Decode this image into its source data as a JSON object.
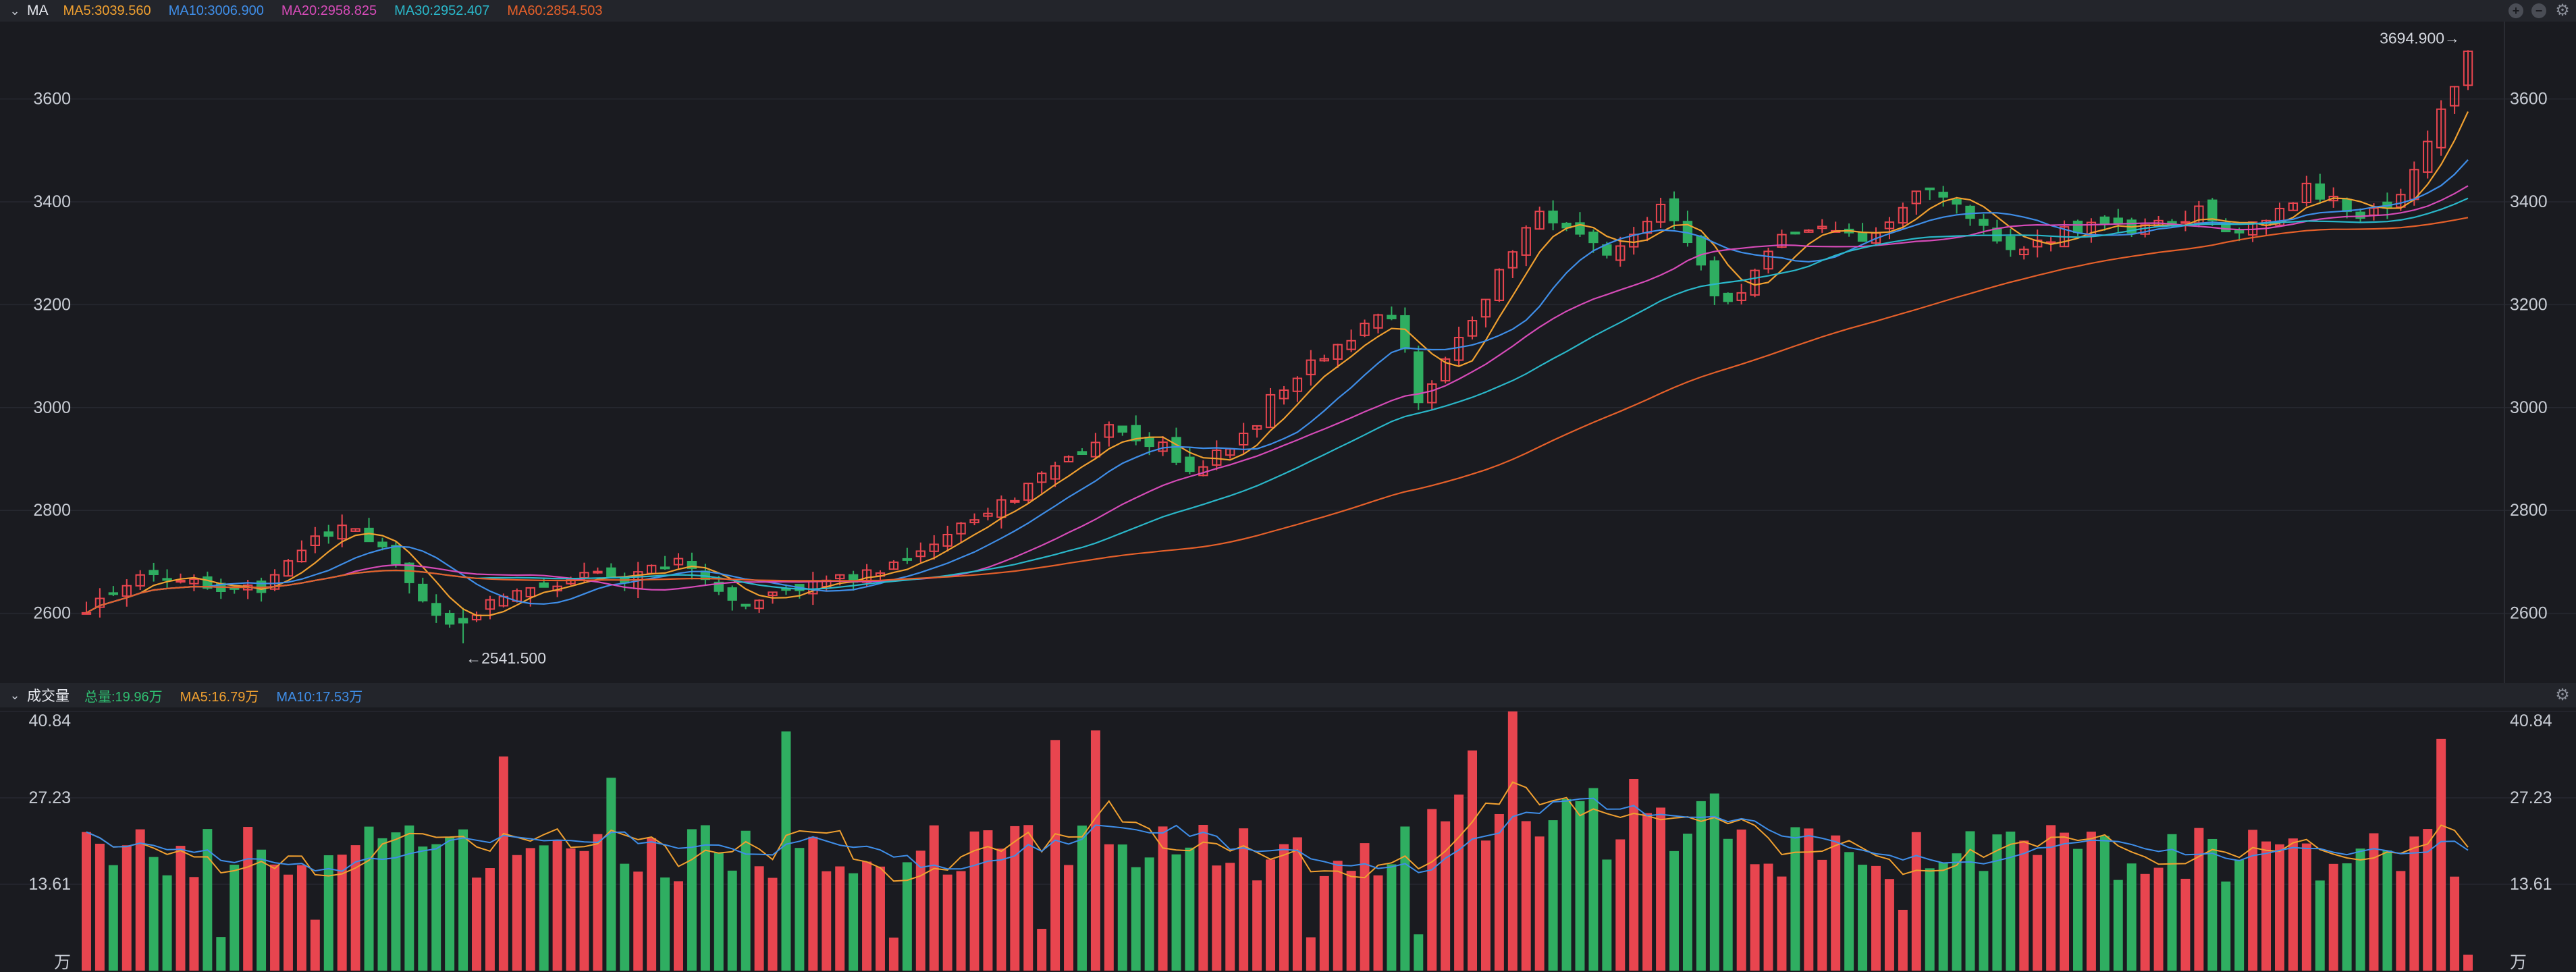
{
  "main_header": {
    "indicator": "MA",
    "items": [
      {
        "label": "MA5:3039.560",
        "color": "#f0a030"
      },
      {
        "label": "MA10:3006.900",
        "color": "#3f8ee8"
      },
      {
        "label": "MA20:2958.825",
        "color": "#d64bb8"
      },
      {
        "label": "MA30:2952.407",
        "color": "#2ab7c9"
      },
      {
        "label": "MA60:2854.503",
        "color": "#e5602a"
      }
    ]
  },
  "volume_header": {
    "indicator": "成交量",
    "items": [
      {
        "label": "总量:19.96万",
        "color": "#2fbf71"
      },
      {
        "label": "MA5:16.79万",
        "color": "#f0a030"
      },
      {
        "label": "MA10:17.53万",
        "color": "#3f8ee8"
      }
    ]
  },
  "colors": {
    "up": "#e8454f",
    "down": "#2fae61",
    "background": "#1a1b20",
    "grid": "#262830"
  },
  "chart_data": [
    {
      "type": "candlestick",
      "title": "",
      "ylim": [
        2480,
        3740
      ],
      "yticks": [
        "3600",
        "3400",
        "3200",
        "3000",
        "2800",
        "2600"
      ],
      "annotations": {
        "high": "3694.900→",
        "low": "←2541.500"
      },
      "n_candles": 178,
      "close_anchors": [
        [
          0,
          2600
        ],
        [
          8,
          2680
        ],
        [
          22,
          2640
        ],
        [
          28,
          2720
        ],
        [
          34,
          2780
        ],
        [
          38,
          2740
        ],
        [
          44,
          2620
        ],
        [
          48,
          2560
        ],
        [
          52,
          2620
        ],
        [
          58,
          2660
        ],
        [
          70,
          2670
        ],
        [
          78,
          2700
        ],
        [
          84,
          2620
        ],
        [
          90,
          2630
        ],
        [
          100,
          2670
        ],
        [
          110,
          2730
        ],
        [
          120,
          2820
        ],
        [
          128,
          2900
        ],
        [
          134,
          2960
        ],
        [
          140,
          2930
        ],
        [
          144,
          2880
        ],
        [
          150,
          2920
        ],
        [
          156,
          3040
        ],
        [
          164,
          3120
        ],
        [
          170,
          3200
        ],
        [
          174,
          3020
        ],
        [
          180,
          3150
        ],
        [
          186,
          3300
        ],
        [
          190,
          3390
        ],
        [
          196,
          3320
        ],
        [
          200,
          3300
        ],
        [
          206,
          3390
        ],
        [
          210,
          3300
        ],
        [
          214,
          3190
        ],
        [
          220,
          3320
        ],
        [
          226,
          3350
        ],
        [
          232,
          3330
        ],
        [
          240,
          3420
        ],
        [
          246,
          3370
        ],
        [
          250,
          3310
        ],
        [
          256,
          3330
        ],
        [
          262,
          3350
        ],
        [
          270,
          3350
        ],
        [
          276,
          3380
        ],
        [
          280,
          3330
        ],
        [
          286,
          3380
        ],
        [
          290,
          3430
        ],
        [
          296,
          3380
        ],
        [
          300,
          3390
        ],
        [
          304,
          3450
        ],
        [
          308,
          3600
        ],
        [
          311,
          3690
        ]
      ],
      "high_label_value": 3694.9,
      "low_label_value": 2541.5
    },
    {
      "type": "bar",
      "title": "成交量",
      "ylim": [
        0,
        40.84
      ],
      "yticks": [
        "40.84",
        "27.23",
        "13.61",
        "万"
      ],
      "unit": "万",
      "series": [
        {
          "name": "MA5",
          "color": "#f0a030"
        },
        {
          "name": "MA10",
          "color": "#3f8ee8"
        }
      ]
    }
  ]
}
